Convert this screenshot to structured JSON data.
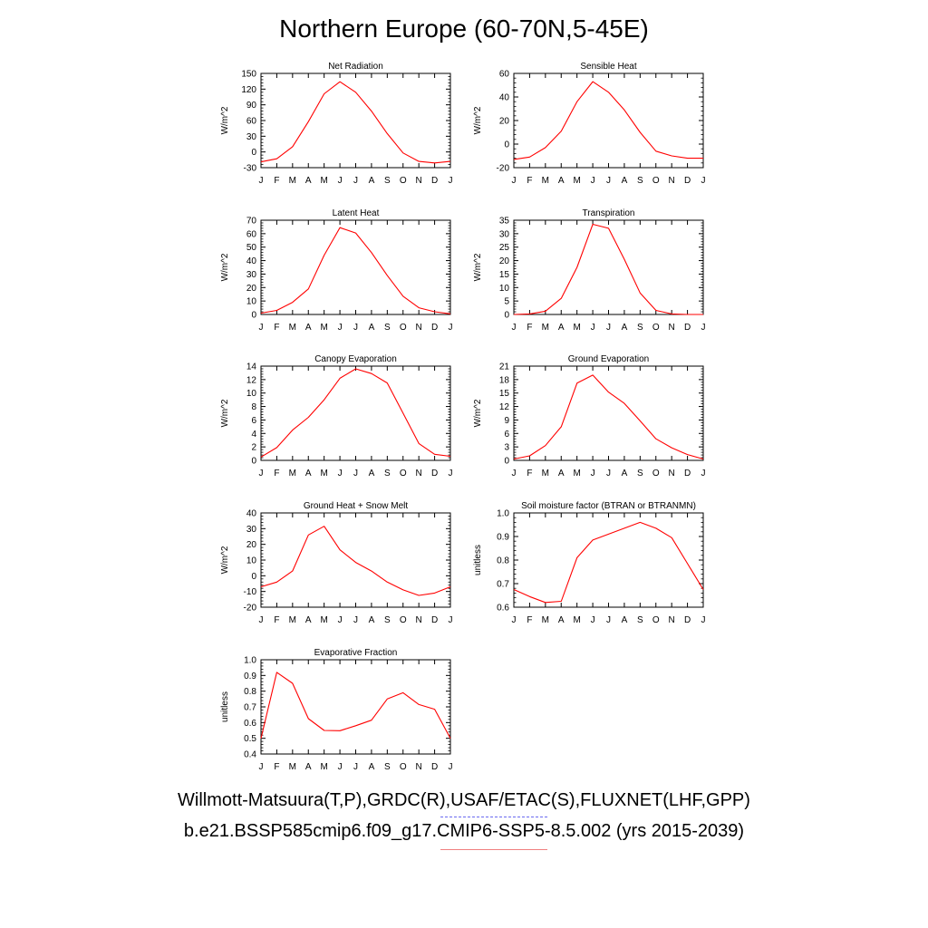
{
  "title": "Northern Europe (60-70N,5-45E)",
  "legend": {
    "observations": "Willmott-Matsuura(T,P),GRDC(R),USAF/ETAC(S),FLUXNET(LHF,GPP)",
    "model": "b.e21.BSSP585cmip6.f09_g17.CMIP6-SSP5-8.5.002 (yrs 2015-2039)",
    "observations_color": "#6a6af0",
    "model_color": "#ff0000"
  },
  "chart_data": [
    {
      "type": "line",
      "title": "Net Radiation",
      "ylabel": "W/m^2",
      "categories": [
        "J",
        "F",
        "M",
        "A",
        "M",
        "J",
        "J",
        "A",
        "S",
        "O",
        "N",
        "D",
        "J"
      ],
      "ylim": [
        -30,
        150
      ],
      "yticks": [
        -30,
        0,
        30,
        60,
        90,
        120,
        150
      ],
      "series": [
        {
          "color": "#ff0000",
          "values": [
            -19,
            -13,
            10,
            58,
            111,
            134,
            114,
            78,
            35,
            -2,
            -18,
            -21,
            -18
          ]
        }
      ]
    },
    {
      "type": "line",
      "title": "Sensible Heat",
      "ylabel": "W/m^2",
      "categories": [
        "J",
        "F",
        "M",
        "A",
        "M",
        "J",
        "J",
        "A",
        "S",
        "O",
        "N",
        "D",
        "J"
      ],
      "ylim": [
        -20,
        60
      ],
      "yticks": [
        -20,
        0,
        20,
        40,
        60
      ],
      "series": [
        {
          "color": "#ff0000",
          "values": [
            -13,
            -11,
            -3,
            11,
            36,
            53,
            44,
            29,
            10,
            -6,
            -10,
            -12,
            -12
          ]
        }
      ]
    },
    {
      "type": "line",
      "title": "Latent Heat",
      "ylabel": "W/m^2",
      "categories": [
        "J",
        "F",
        "M",
        "A",
        "M",
        "J",
        "J",
        "A",
        "S",
        "O",
        "N",
        "D",
        "J"
      ],
      "ylim": [
        0,
        70
      ],
      "yticks": [
        0,
        10,
        20,
        30,
        40,
        50,
        60,
        70
      ],
      "series": [
        {
          "color": "#ff0000",
          "values": [
            1,
            3,
            9,
            19,
            44,
            64.5,
            60.5,
            46,
            29,
            13.5,
            5,
            2,
            0.5
          ]
        }
      ]
    },
    {
      "type": "line",
      "title": "Transpiration",
      "ylabel": "W/m^2",
      "categories": [
        "J",
        "F",
        "M",
        "A",
        "M",
        "J",
        "J",
        "A",
        "S",
        "O",
        "N",
        "D",
        "J"
      ],
      "ylim": [
        0,
        35
      ],
      "yticks": [
        0,
        5,
        10,
        15,
        20,
        25,
        30,
        35
      ],
      "series": [
        {
          "color": "#ff0000",
          "values": [
            0,
            0.2,
            1.2,
            6,
            17.5,
            33.5,
            32,
            20.5,
            8,
            1.5,
            0.2,
            0,
            0
          ]
        }
      ]
    },
    {
      "type": "line",
      "title": "Canopy Evaporation",
      "ylabel": "W/m^2",
      "categories": [
        "J",
        "F",
        "M",
        "A",
        "M",
        "J",
        "J",
        "A",
        "S",
        "O",
        "N",
        "D",
        "J"
      ],
      "ylim": [
        0,
        14
      ],
      "yticks": [
        0,
        2,
        4,
        6,
        8,
        10,
        12,
        14
      ],
      "series": [
        {
          "color": "#ff0000",
          "values": [
            0.5,
            1.9,
            4.5,
            6.4,
            9,
            12.2,
            13.6,
            12.9,
            11.5,
            7,
            2.5,
            0.9,
            0.6
          ]
        }
      ]
    },
    {
      "type": "line",
      "title": "Ground Evaporation",
      "ylabel": "W/m^2",
      "categories": [
        "J",
        "F",
        "M",
        "A",
        "M",
        "J",
        "J",
        "A",
        "S",
        "O",
        "N",
        "D",
        "J"
      ],
      "ylim": [
        0,
        21
      ],
      "yticks": [
        0,
        3,
        6,
        9,
        12,
        15,
        18,
        21
      ],
      "series": [
        {
          "color": "#ff0000",
          "values": [
            0.3,
            1,
            3.3,
            7.5,
            17.2,
            19,
            15.2,
            12.7,
            8.8,
            4.8,
            2.8,
            1.3,
            0.3
          ]
        }
      ]
    },
    {
      "type": "line",
      "title": "Ground Heat + Snow Melt",
      "ylabel": "W/m^2",
      "categories": [
        "J",
        "F",
        "M",
        "A",
        "M",
        "J",
        "J",
        "A",
        "S",
        "O",
        "N",
        "D",
        "J"
      ],
      "ylim": [
        -20,
        40
      ],
      "yticks": [
        -20,
        -10,
        0,
        10,
        20,
        30,
        40
      ],
      "series": [
        {
          "color": "#ff0000",
          "values": [
            -7,
            -4,
            3,
            26,
            31.5,
            16.5,
            8.5,
            3,
            -4,
            -9,
            -12.5,
            -11,
            -7
          ]
        }
      ]
    },
    {
      "type": "line",
      "title": "Soil moisture factor (BTRAN or BTRANMN)",
      "ylabel": "unitless",
      "categories": [
        "J",
        "F",
        "M",
        "A",
        "M",
        "J",
        "J",
        "A",
        "S",
        "O",
        "N",
        "D",
        "J"
      ],
      "ylim": [
        0.6,
        1.0
      ],
      "yticks": [
        0.6,
        0.7,
        0.8,
        0.9,
        1.0
      ],
      "series": [
        {
          "color": "#ff0000",
          "values": [
            0.675,
            0.645,
            0.62,
            0.625,
            0.81,
            0.885,
            0.91,
            0.935,
            0.96,
            0.935,
            0.895,
            0.785,
            0.675
          ]
        }
      ]
    },
    {
      "type": "line",
      "title": "Evaporative Fraction",
      "ylabel": "unitless",
      "categories": [
        "J",
        "F",
        "M",
        "A",
        "M",
        "J",
        "J",
        "A",
        "S",
        "O",
        "N",
        "D",
        "J"
      ],
      "ylim": [
        0.4,
        1.0
      ],
      "yticks": [
        0.4,
        0.5,
        0.6,
        0.7,
        0.8,
        0.9,
        1.0
      ],
      "series": [
        {
          "color": "#ff0000",
          "values": [
            0.5,
            0.92,
            0.85,
            0.625,
            0.55,
            0.548,
            0.58,
            0.615,
            0.75,
            0.79,
            0.715,
            0.685,
            0.5
          ]
        }
      ]
    }
  ]
}
